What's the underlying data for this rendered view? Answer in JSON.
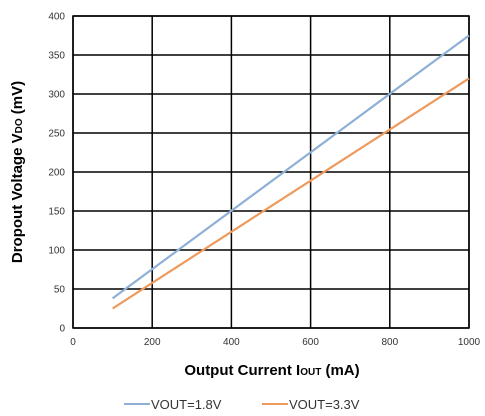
{
  "chart_data": {
    "type": "line",
    "xlabel": {
      "main": "Output Current I",
      "sub": "OUT",
      "unit": " (mA)"
    },
    "ylabel": {
      "main": "Dropout Voltage V",
      "sub": "DO",
      "unit": " (mV)"
    },
    "xlim": [
      0,
      1000
    ],
    "ylim": [
      0,
      400
    ],
    "xticks": [
      0,
      200,
      400,
      600,
      800,
      1000
    ],
    "yticks": [
      0,
      50,
      100,
      150,
      200,
      250,
      300,
      350,
      400
    ],
    "grid": true,
    "legend_position": "bottom",
    "series": [
      {
        "name": "VOUT=1.8V",
        "color": "#8fb0d6",
        "x": [
          100,
          1000
        ],
        "y": [
          38,
          375
        ]
      },
      {
        "name": "VOUT=3.3V",
        "color": "#ee9a5c",
        "x": [
          100,
          1000
        ],
        "y": [
          25,
          320
        ]
      }
    ]
  }
}
